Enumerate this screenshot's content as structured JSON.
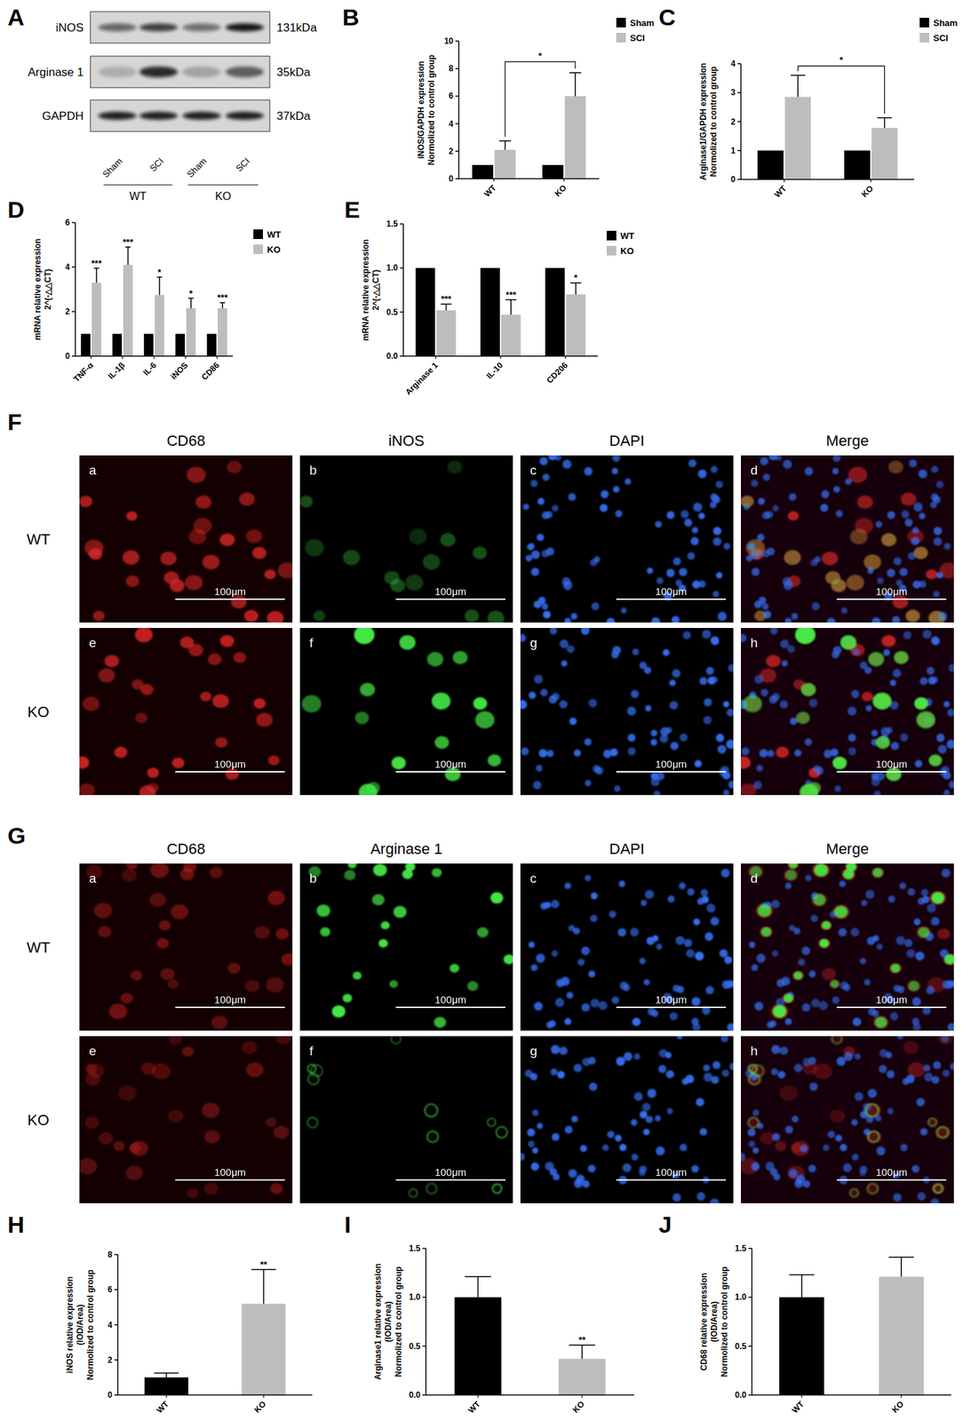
{
  "panel_labels": [
    "A",
    "B",
    "C",
    "D",
    "E",
    "F",
    "G",
    "H",
    "I",
    "J"
  ],
  "blot": {
    "bands": [
      "iNOS",
      "Arginase 1",
      "GAPDH"
    ],
    "sizes": [
      "131kDa",
      "35kDa",
      "37kDa"
    ],
    "lanes": [
      "Sham",
      "SCI",
      "Sham",
      "SCI"
    ],
    "groups": [
      "WT",
      "KO"
    ]
  },
  "micrographs": [
    {
      "columns": [
        "CD68",
        "iNOS",
        "DAPI",
        "Merge"
      ],
      "rows": [
        "WT",
        "KO"
      ],
      "letters": [
        [
          "a",
          "b",
          "c",
          "d"
        ],
        [
          "e",
          "f",
          "g",
          "h"
        ]
      ],
      "scale_bar": "100μm"
    },
    {
      "columns": [
        "CD68",
        "Arginase 1",
        "DAPI",
        "Merge"
      ],
      "rows": [
        "WT",
        "KO"
      ],
      "letters": [
        [
          "a",
          "b",
          "c",
          "d"
        ],
        [
          "e",
          "f",
          "g",
          "h"
        ]
      ],
      "scale_bar": "100μm"
    }
  ],
  "chart_data": [
    {
      "type": "bar",
      "y_label": [
        "iNOS/GAPDH expression",
        "Normolized to control group"
      ],
      "categories": [
        "WT",
        "KO"
      ],
      "series": [
        {
          "name": "Sham",
          "color": "#000000",
          "values": [
            1,
            1
          ]
        },
        {
          "name": "SCI",
          "color": "#bdbdbd",
          "values": [
            2.1,
            6.0
          ],
          "errors": [
            0.65,
            1.7
          ]
        }
      ],
      "ylim": [
        0,
        10
      ],
      "yticks": [
        0,
        2,
        4,
        6,
        8,
        10
      ],
      "legend": "top-right",
      "bracket": {
        "series": 1,
        "categories": [
          0,
          1
        ],
        "text": "*"
      }
    },
    {
      "type": "bar",
      "y_label": [
        "Arginase1/GAPDH expression",
        "Normolized to control group"
      ],
      "categories": [
        "WT",
        "KO"
      ],
      "series": [
        {
          "name": "Sham",
          "color": "#000000",
          "values": [
            1,
            1
          ]
        },
        {
          "name": "SCI",
          "color": "#bdbdbd",
          "values": [
            2.85,
            1.78
          ],
          "errors": [
            0.75,
            0.35
          ]
        }
      ],
      "ylim": [
        0,
        4
      ],
      "yticks": [
        0,
        1,
        2,
        3,
        4
      ],
      "legend": "top-right",
      "bracket": {
        "series": 1,
        "categories": [
          0,
          1
        ],
        "text": "*"
      }
    },
    {
      "type": "bar",
      "y_label": [
        "mRNA relative expression",
        "2^(-△△CT)"
      ],
      "categories": [
        "TNF-α",
        "IL-1β",
        "IL-6",
        "iNOS",
        "CD86"
      ],
      "series": [
        {
          "name": "WT",
          "color": "#000000",
          "values": [
            1,
            1,
            1,
            1,
            1
          ]
        },
        {
          "name": "KO",
          "color": "#bdbdbd",
          "values": [
            3.3,
            4.1,
            2.75,
            2.15,
            2.15
          ],
          "errors": [
            0.65,
            0.8,
            0.8,
            0.45,
            0.25
          ]
        }
      ],
      "ylim": [
        0,
        6
      ],
      "yticks": [
        0,
        2,
        4,
        6
      ],
      "legend": "top-right",
      "significance": [
        "***",
        "***",
        "*",
        "*",
        "***"
      ]
    },
    {
      "type": "bar",
      "y_label": [
        "mRNA relative expression",
        "2^(-△△CT)"
      ],
      "categories": [
        "Arginase 1",
        "IL-10",
        "CD206"
      ],
      "series": [
        {
          "name": "WT",
          "color": "#000000",
          "values": [
            1,
            1,
            1
          ]
        },
        {
          "name": "KO",
          "color": "#bdbdbd",
          "values": [
            0.52,
            0.47,
            0.7
          ],
          "errors": [
            0.07,
            0.17,
            0.13
          ]
        }
      ],
      "ylim": [
        0,
        1.5
      ],
      "yticks": [
        {
          "value": 0,
          "label": "0.0"
        },
        {
          "value": 0.5,
          "label": "0.5"
        },
        {
          "value": 1,
          "label": "1.0"
        },
        {
          "value": 1.5,
          "label": "1.5"
        }
      ],
      "legend": "top-right",
      "significance": [
        "***",
        "***",
        "*"
      ]
    },
    {
      "type": "bar",
      "y_label": [
        "iNOS relative expression",
        "(IOD/Area)",
        "Normolized to control group"
      ],
      "categories": [
        "WT",
        "KO"
      ],
      "values": [
        1,
        5.2
      ],
      "errors": [
        0.25,
        1.95
      ],
      "colors": [
        "#000000",
        "#bdbdbd"
      ],
      "ylim": [
        0,
        8
      ],
      "yticks": [
        0,
        2,
        4,
        6,
        8
      ],
      "significance": [
        null,
        "**"
      ]
    },
    {
      "type": "bar",
      "y_label": [
        "Arginase1 relative expression",
        "(IOD/Area)",
        "Normolized to control group"
      ],
      "categories": [
        "WT",
        "KO"
      ],
      "values": [
        1,
        0.37
      ],
      "errors": [
        0.21,
        0.14
      ],
      "colors": [
        "#000000",
        "#bdbdbd"
      ],
      "ylim": [
        0,
        1.5
      ],
      "yticks": [
        {
          "value": 0,
          "label": "0.0"
        },
        {
          "value": 0.5,
          "label": "0.5"
        },
        {
          "value": 1,
          "label": "1.0"
        },
        {
          "value": 1.5,
          "label": "1.5"
        }
      ],
      "significance": [
        null,
        "**"
      ]
    },
    {
      "type": "bar",
      "y_label": [
        "CD68 relative expression",
        "(IOD/Area)",
        "Normolized to control group"
      ],
      "categories": [
        "WT",
        "KO"
      ],
      "values": [
        1,
        1.21
      ],
      "errors": [
        0.23,
        0.2
      ],
      "colors": [
        "#000000",
        "#bdbdbd"
      ],
      "ylim": [
        0,
        1.5
      ],
      "yticks": [
        {
          "value": 0,
          "label": "0.0"
        },
        {
          "value": 0.5,
          "label": "0.5"
        },
        {
          "value": 1,
          "label": "1.0"
        },
        {
          "value": 1.5,
          "label": "1.5"
        }
      ]
    }
  ]
}
